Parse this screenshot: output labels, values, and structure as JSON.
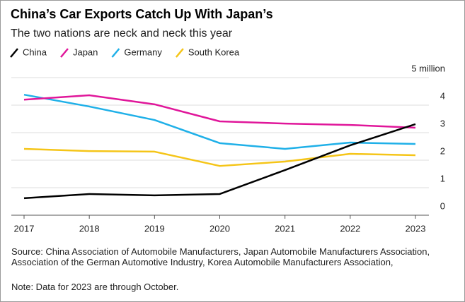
{
  "chart_data": {
    "type": "line",
    "title": "China’s Car Exports Catch Up With Japan’s",
    "subtitle": "The two nations are neck and neck this year",
    "categories": [
      "2017",
      "2018",
      "2019",
      "2020",
      "2021",
      "2022",
      "2023"
    ],
    "series": [
      {
        "name": "China",
        "color": "#000000",
        "values": [
          0.62,
          0.77,
          0.72,
          0.77,
          1.64,
          2.54,
          3.31
        ]
      },
      {
        "name": "Japan",
        "color": "#e0169a",
        "values": [
          4.2,
          4.36,
          4.03,
          3.41,
          3.33,
          3.28,
          3.18
        ]
      },
      {
        "name": "Germany",
        "color": "#1fb0e8",
        "values": [
          4.38,
          3.95,
          3.46,
          2.62,
          2.41,
          2.64,
          2.59
        ]
      },
      {
        "name": "South Korea",
        "color": "#f5c518",
        "values": [
          2.41,
          2.33,
          2.31,
          1.79,
          1.95,
          2.23,
          2.18
        ]
      }
    ],
    "ylim": [
      0,
      5
    ],
    "yticks": [
      0,
      1,
      2,
      3,
      4,
      {
        "value": 5,
        "label": "5 million"
      }
    ],
    "grid": true,
    "source": "Source: China Association of Automobile Manufacturers, Japan Automobile Manufacturers Association, Association of the German Automotive Industry, Korea Automobile Manufacturers Association,",
    "note": "Note: Data for 2023 are through October."
  }
}
